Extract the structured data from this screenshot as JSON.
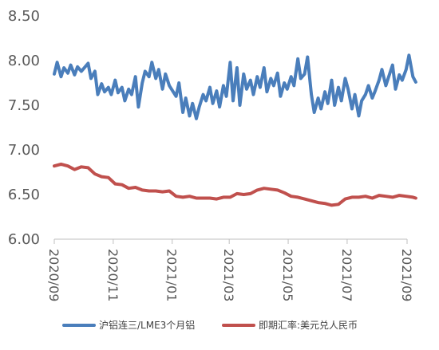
{
  "chart_data": {
    "type": "line",
    "y_ticks": [
      "8.50",
      "8.00",
      "7.50",
      "7.00",
      "6.50",
      "6.00"
    ],
    "ylim": [
      6.0,
      8.5
    ],
    "x_ticks": [
      "2020/09",
      "2020/11",
      "2021/01",
      "2021/03",
      "2021/05",
      "2021/07",
      "2021/09"
    ],
    "x_tick_values": [
      "2020-09-01",
      "2020-11-01",
      "2021-01-01",
      "2021-03-01",
      "2021-05-01",
      "2021-07-01",
      "2021-09-01"
    ],
    "grid": false,
    "legend_position": "bottom",
    "series": [
      {
        "name": "沪铝连三/LME3个月铝",
        "color": "#4a7ebb",
        "x": [
          "2020-09-01",
          "2020-09-04",
          "2020-09-08",
          "2020-09-11",
          "2020-09-15",
          "2020-09-18",
          "2020-09-22",
          "2020-09-25",
          "2020-09-29",
          "2020-10-06",
          "2020-10-09",
          "2020-10-13",
          "2020-10-16",
          "2020-10-20",
          "2020-10-23",
          "2020-10-27",
          "2020-10-30",
          "2020-11-03",
          "2020-11-06",
          "2020-11-10",
          "2020-11-13",
          "2020-11-17",
          "2020-11-20",
          "2020-11-24",
          "2020-11-27",
          "2020-12-01",
          "2020-12-04",
          "2020-12-08",
          "2020-12-11",
          "2020-12-15",
          "2020-12-18",
          "2020-12-22",
          "2020-12-25",
          "2020-12-29",
          "2021-01-05",
          "2021-01-08",
          "2021-01-12",
          "2021-01-15",
          "2021-01-19",
          "2021-01-22",
          "2021-01-26",
          "2021-01-29",
          "2021-02-02",
          "2021-02-05",
          "2021-02-09",
          "2021-02-12",
          "2021-02-16",
          "2021-02-19",
          "2021-02-23",
          "2021-02-26",
          "2021-03-02",
          "2021-03-05",
          "2021-03-09",
          "2021-03-12",
          "2021-03-16",
          "2021-03-19",
          "2021-03-23",
          "2021-03-26",
          "2021-03-30",
          "2021-04-02",
          "2021-04-06",
          "2021-04-09",
          "2021-04-13",
          "2021-04-16",
          "2021-04-20",
          "2021-04-23",
          "2021-04-27",
          "2021-04-30",
          "2021-05-04",
          "2021-05-07",
          "2021-05-11",
          "2021-05-14",
          "2021-05-18",
          "2021-05-21",
          "2021-05-25",
          "2021-05-28",
          "2021-06-01",
          "2021-06-04",
          "2021-06-08",
          "2021-06-11",
          "2021-06-15",
          "2021-06-18",
          "2021-06-22",
          "2021-06-25",
          "2021-06-29",
          "2021-07-02",
          "2021-07-06",
          "2021-07-09",
          "2021-07-13",
          "2021-07-16",
          "2021-07-20",
          "2021-07-23",
          "2021-07-27",
          "2021-07-30",
          "2021-08-03",
          "2021-08-06",
          "2021-08-10",
          "2021-08-13",
          "2021-08-17",
          "2021-08-20",
          "2021-08-24",
          "2021-08-27",
          "2021-08-31",
          "2021-09-03",
          "2021-09-07",
          "2021-09-10"
        ],
        "values": [
          7.85,
          7.98,
          7.82,
          7.92,
          7.86,
          7.95,
          7.84,
          7.93,
          7.88,
          7.97,
          7.8,
          7.88,
          7.62,
          7.74,
          7.65,
          7.7,
          7.62,
          7.78,
          7.64,
          7.7,
          7.55,
          7.68,
          7.62,
          7.82,
          7.48,
          7.75,
          7.88,
          7.82,
          7.98,
          7.8,
          7.9,
          7.68,
          7.85,
          7.72,
          7.6,
          7.75,
          7.42,
          7.58,
          7.38,
          7.52,
          7.35,
          7.48,
          7.62,
          7.55,
          7.7,
          7.52,
          7.66,
          7.48,
          7.72,
          7.6,
          7.98,
          7.55,
          7.92,
          7.5,
          7.85,
          7.68,
          7.78,
          7.62,
          7.82,
          7.7,
          7.92,
          7.65,
          7.8,
          7.72,
          7.86,
          7.6,
          7.75,
          7.68,
          7.82,
          7.72,
          8.02,
          7.8,
          7.85,
          8.04,
          7.62,
          7.42,
          7.58,
          7.46,
          7.65,
          7.52,
          7.78,
          7.5,
          7.7,
          7.55,
          7.8,
          7.68,
          7.46,
          7.62,
          7.38,
          7.55,
          7.62,
          7.72,
          7.58,
          7.66,
          7.78,
          7.9,
          7.72,
          7.82,
          7.95,
          7.68,
          7.84,
          7.78,
          7.9,
          8.06,
          7.82,
          7.76
        ]
      },
      {
        "name": "即期汇率:美元兑人民币",
        "color": "#c0504d",
        "x": [
          "2020-09-01",
          "2020-09-08",
          "2020-09-15",
          "2020-09-22",
          "2020-09-29",
          "2020-10-06",
          "2020-10-13",
          "2020-10-20",
          "2020-10-27",
          "2020-11-03",
          "2020-11-10",
          "2020-11-17",
          "2020-11-24",
          "2020-12-01",
          "2020-12-08",
          "2020-12-15",
          "2020-12-22",
          "2020-12-29",
          "2021-01-05",
          "2021-01-12",
          "2021-01-19",
          "2021-01-26",
          "2021-02-02",
          "2021-02-09",
          "2021-02-16",
          "2021-02-23",
          "2021-03-02",
          "2021-03-09",
          "2021-03-16",
          "2021-03-23",
          "2021-03-30",
          "2021-04-06",
          "2021-04-13",
          "2021-04-20",
          "2021-04-27",
          "2021-05-04",
          "2021-05-11",
          "2021-05-18",
          "2021-05-25",
          "2021-06-01",
          "2021-06-08",
          "2021-06-15",
          "2021-06-22",
          "2021-06-29",
          "2021-07-06",
          "2021-07-13",
          "2021-07-20",
          "2021-07-27",
          "2021-08-03",
          "2021-08-10",
          "2021-08-17",
          "2021-08-24",
          "2021-08-31",
          "2021-09-07",
          "2021-09-10"
        ],
        "values": [
          6.82,
          6.84,
          6.82,
          6.78,
          6.81,
          6.8,
          6.73,
          6.7,
          6.69,
          6.62,
          6.61,
          6.57,
          6.58,
          6.55,
          6.54,
          6.54,
          6.53,
          6.54,
          6.48,
          6.47,
          6.48,
          6.46,
          6.46,
          6.46,
          6.45,
          6.47,
          6.47,
          6.51,
          6.5,
          6.51,
          6.55,
          6.57,
          6.56,
          6.55,
          6.52,
          6.48,
          6.47,
          6.45,
          6.43,
          6.41,
          6.4,
          6.38,
          6.39,
          6.45,
          6.47,
          6.47,
          6.48,
          6.46,
          6.49,
          6.48,
          6.47,
          6.49,
          6.48,
          6.47,
          6.46
        ]
      }
    ]
  }
}
